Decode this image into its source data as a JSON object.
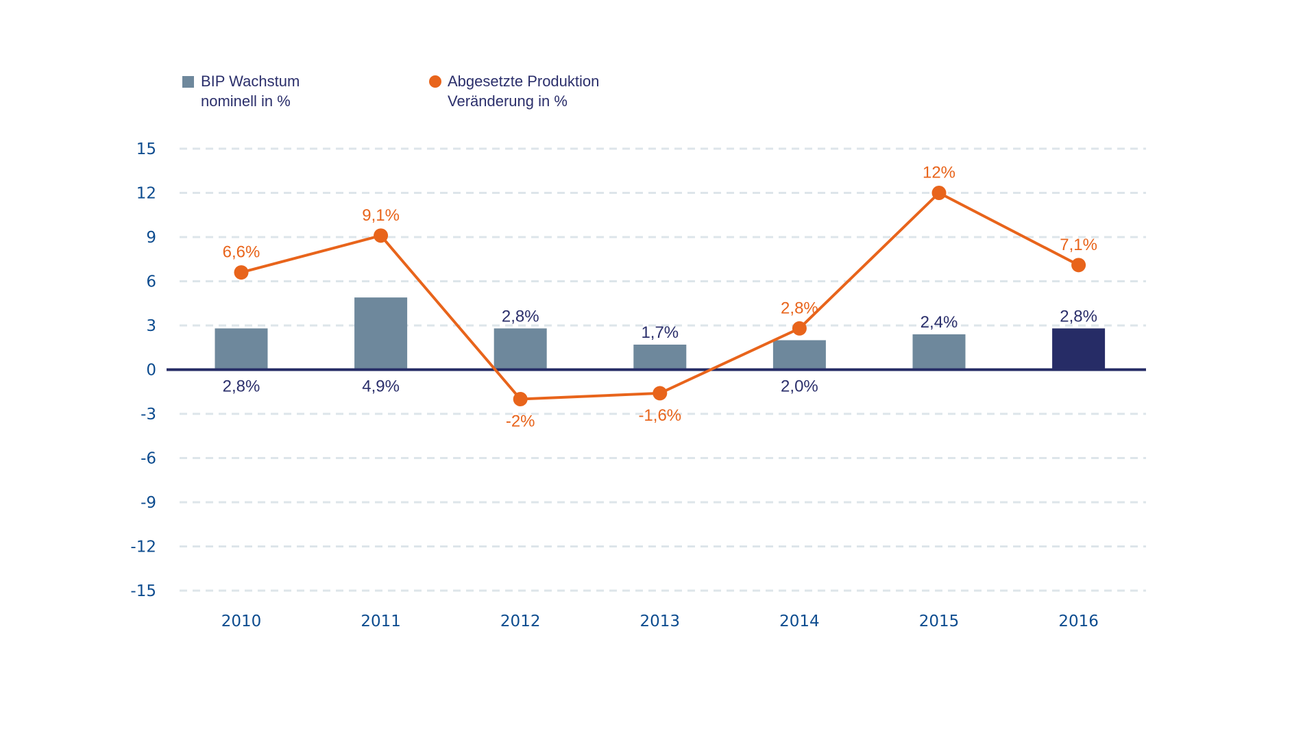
{
  "legend": {
    "bar": {
      "line1": "BIP Wachstum",
      "line2": "nominell in %"
    },
    "line": {
      "line1": "Abgesetzte Produktion",
      "line2": "Veränderung in %"
    }
  },
  "colors": {
    "bar": "#6e889c",
    "bar_highlight": "#262c66",
    "line": "#e8641b",
    "axis": "#262c66",
    "grid": "#dde5ea",
    "tick_text": "#0d4c8f",
    "bar_label_text": "#2b2f6b"
  },
  "chart_data": {
    "type": "bar",
    "title": "",
    "xlabel": "",
    "ylabel": "",
    "categories": [
      "2010",
      "2011",
      "2012",
      "2013",
      "2014",
      "2015",
      "2016"
    ],
    "ylim": [
      -15,
      15
    ],
    "yticks": [
      15,
      12,
      9,
      6,
      3,
      0,
      -3,
      -6,
      -9,
      -12,
      -15
    ],
    "ytick_labels": [
      "15",
      "12",
      "9",
      "6",
      "3",
      "0",
      "-3",
      "-6",
      "-9",
      "-12",
      "-15"
    ],
    "grid": true,
    "legend_position": "top-left",
    "series": [
      {
        "name": "BIP Wachstum nominell in %",
        "type": "bar",
        "values": [
          2.8,
          4.9,
          2.8,
          1.7,
          2.0,
          2.4,
          2.8
        ],
        "labels": [
          "2,8%",
          "4,9%",
          "2,8%",
          "1,7%",
          "2,0%",
          "2,4%",
          "2,8%"
        ],
        "label_positions": [
          "below",
          "below",
          "above",
          "above",
          "below",
          "above",
          "above"
        ],
        "highlight_index": 6
      },
      {
        "name": "Abgesetzte Produktion Veränderung in %",
        "type": "line",
        "values": [
          6.6,
          9.1,
          -2.0,
          -1.6,
          2.8,
          12.0,
          7.1
        ],
        "labels": [
          "6,6%",
          "9,1%",
          "-2%",
          "-1,6%",
          "2,8%",
          "12%",
          "7,1%"
        ],
        "label_positions": [
          "above",
          "above",
          "below",
          "below",
          "above",
          "above",
          "above"
        ]
      }
    ]
  }
}
